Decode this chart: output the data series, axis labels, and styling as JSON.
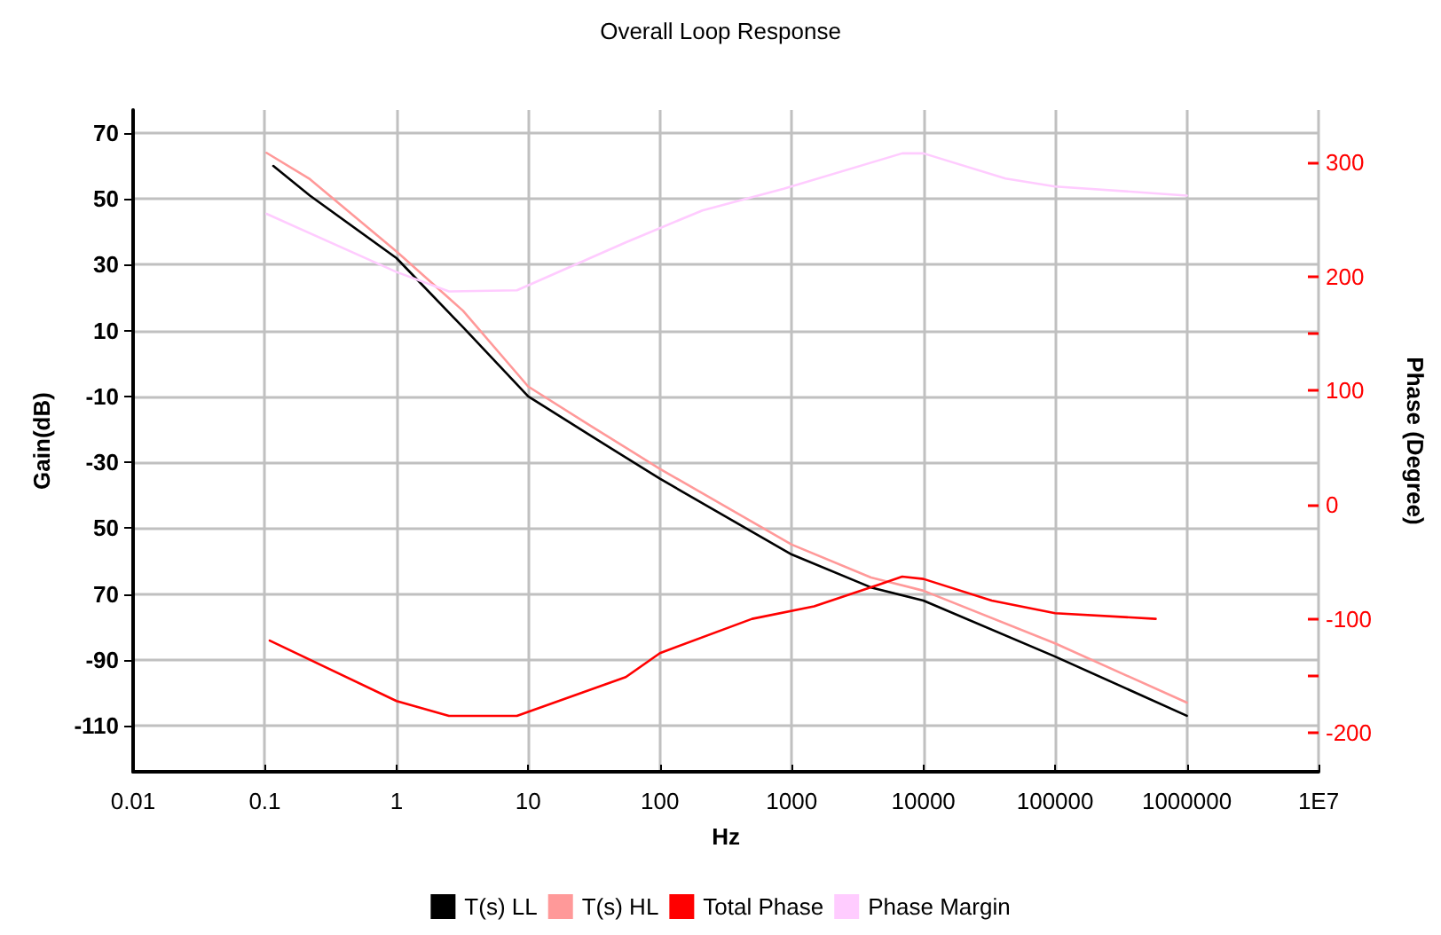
{
  "chart_data": {
    "type": "line",
    "title": "Overall Loop Response",
    "xlabel": "Hz",
    "ylabel": "Gain(dB)",
    "y2label": "Phase (Degree)",
    "log": "x",
    "grid": true,
    "legend": "bottom",
    "marker": "none",
    "line_style": "solid",
    "xlim": [
      0.01,
      10000000
    ],
    "xticks": [
      0.01,
      0.1,
      1,
      10,
      100,
      1000,
      10000,
      100000,
      1000000,
      {
        "value": 10000000,
        "label": "1E7"
      }
    ],
    "ylim": [
      -124,
      77
    ],
    "yticks": [
      70,
      50,
      30,
      10,
      -10,
      -30,
      {
        "value": -50,
        "label": "50"
      },
      {
        "value": -70,
        "label": "70"
      },
      -90,
      -110
    ],
    "y2lim": [
      -234,
      346
    ],
    "y2ticks": [
      300,
      200,
      {
        "value": 150,
        "label": null
      },
      100,
      0,
      -100,
      {
        "value": -150,
        "label": null
      },
      -200
    ],
    "series": [
      {
        "name": "T(s) LL",
        "color": "#000000",
        "x": [
          0.116,
          0.22,
          1,
          3.2,
          10,
          30,
          100,
          1000,
          4000,
          10000,
          100000,
          1000000
        ],
        "values": [
          60,
          51,
          32,
          11,
          -10,
          -22,
          -35,
          -58,
          -68,
          -72,
          -89,
          -107
        ]
      },
      {
        "name": "T(s) HL",
        "color": "#ff9999",
        "x": [
          0.103,
          0.22,
          1,
          3.2,
          10,
          30,
          100,
          1000,
          4000,
          10000,
          100000,
          1000000
        ],
        "values": [
          64,
          56,
          34,
          16,
          -7,
          -19,
          -32,
          -55,
          -65,
          -69,
          -85,
          -103
        ]
      },
      {
        "name": "Total Phase",
        "color": "#ff0000",
        "axis": "y2",
        "x": [
          0.109,
          1,
          2.5,
          8.2,
          55,
          100,
          500,
          1480,
          4600,
          6900,
          10000,
          33000,
          100000,
          580000
        ],
        "values": [
          -119,
          -172,
          -185,
          -185,
          -151,
          -130,
          -100,
          -89,
          -70,
          -63,
          -65,
          -84,
          -95,
          -100
        ]
      },
      {
        "name": "Phase Margin",
        "color": "#ffccff",
        "axis": "y2",
        "x": [
          0.103,
          1,
          2.5,
          8.2,
          55,
          210,
          870,
          6900,
          10000,
          42000,
          100000,
          1000000
        ],
        "values": [
          255,
          204,
          187,
          188,
          230,
          258,
          277,
          308,
          308,
          286,
          279,
          271
        ]
      }
    ]
  }
}
